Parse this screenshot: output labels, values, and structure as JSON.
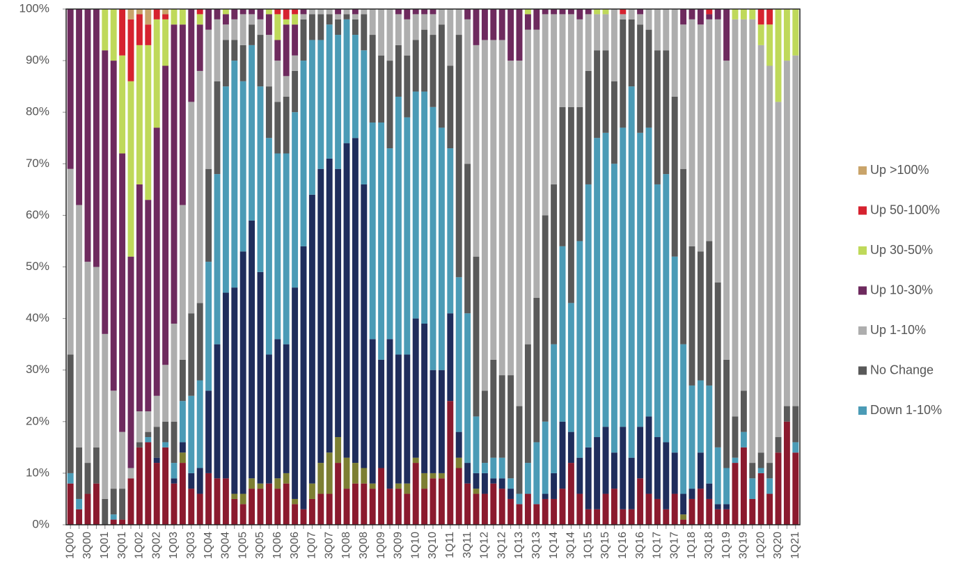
{
  "chart_data": {
    "type": "stacked_bar",
    "categories": [
      "1Q00",
      null,
      "3Q00",
      null,
      "1Q01",
      null,
      "3Q01",
      null,
      "1Q02",
      null,
      "3Q02",
      null,
      "1Q03",
      null,
      "3Q03",
      null,
      "1Q04",
      null,
      "3Q04",
      null,
      "1Q05",
      null,
      "3Q05",
      null,
      "1Q06",
      null,
      "3Q06",
      null,
      "1Q07",
      null,
      "3Q07",
      null,
      "1Q08",
      null,
      "3Q08",
      null,
      "1Q09",
      null,
      "3Q09",
      null,
      "1Q10",
      null,
      "3Q10",
      null,
      "1Q11",
      null,
      "3Q11",
      null,
      "1Q12",
      null,
      "3Q12",
      null,
      "1Q13",
      null,
      "3Q13",
      null,
      "1Q14",
      null,
      "3Q14",
      null,
      "1Q15",
      null,
      "3Q15",
      null,
      "1Q16",
      null,
      "3Q16",
      null,
      "1Q17",
      null,
      "3Q17",
      null,
      "1Q18",
      null,
      "3Q18",
      null,
      "1Q19",
      null,
      "3Q19",
      null,
      "1Q20",
      null,
      "3Q20",
      null,
      "1Q21"
    ],
    "series": [
      {
        "color": "#8b1a2e",
        "values": [
          8,
          3,
          6,
          8,
          0,
          1,
          1,
          9,
          15,
          16,
          12,
          15,
          8,
          12,
          7,
          6,
          10,
          9,
          9,
          5,
          4,
          7,
          7,
          8,
          7,
          8,
          4,
          3,
          5,
          6,
          6,
          12,
          7,
          8,
          8,
          7,
          11,
          7,
          7,
          6,
          12,
          7,
          9,
          9,
          24,
          11,
          8,
          6,
          6,
          8,
          7,
          5,
          4,
          6,
          4,
          5,
          5,
          7,
          12,
          6,
          3,
          3,
          6,
          7,
          3,
          3,
          9,
          6,
          5,
          3,
          6,
          1,
          5,
          7,
          5,
          3,
          3,
          12,
          15,
          5,
          10,
          6,
          14,
          20,
          14
        ]
      },
      {
        "color": "#7d7f33",
        "values": [
          0,
          0,
          0,
          0,
          0,
          0,
          0,
          0,
          0,
          0,
          0,
          0,
          0,
          2,
          0,
          0,
          0,
          0,
          0,
          1,
          2,
          2,
          1,
          0,
          2,
          2,
          1,
          0,
          3,
          6,
          8,
          5,
          6,
          4,
          3,
          1,
          0,
          0,
          1,
          2,
          1,
          3,
          1,
          1,
          0,
          2,
          0,
          1,
          0,
          0,
          0,
          0,
          0,
          0,
          0,
          0,
          0,
          0,
          0,
          0,
          0,
          0,
          0,
          0,
          0,
          0,
          0,
          0,
          0,
          0,
          0,
          1,
          0,
          0,
          0,
          0,
          0,
          0,
          0,
          0,
          0,
          0,
          0,
          0,
          0
        ]
      },
      {
        "color": "#1f2d5c",
        "values": [
          0,
          0,
          0,
          0,
          0,
          0,
          0,
          0,
          0,
          0,
          1,
          0,
          1,
          2,
          3,
          5,
          16,
          26,
          36,
          40,
          47,
          50,
          41,
          25,
          27,
          25,
          41,
          51,
          56,
          57,
          57,
          52,
          61,
          63,
          55,
          28,
          21,
          29,
          25,
          25,
          27,
          29,
          20,
          20,
          17,
          5,
          4,
          3,
          4,
          1,
          2,
          2,
          0,
          0,
          0,
          1,
          5,
          13,
          6,
          7,
          12,
          14,
          13,
          7,
          16,
          10,
          10,
          15,
          12,
          13,
          8,
          4,
          2,
          7,
          3,
          1,
          1,
          0,
          0,
          0,
          0,
          0,
          0,
          0,
          0
        ]
      },
      {
        "name": "Down 1-10%",
        "color": "#4b9bb6",
        "values": [
          2,
          2,
          0,
          0,
          0,
          1,
          0,
          0,
          0,
          1,
          0,
          1,
          3,
          8,
          15,
          17,
          25,
          33,
          40,
          44,
          33,
          34,
          36,
          42,
          36,
          37,
          34,
          36,
          30,
          25,
          26,
          26,
          24,
          20,
          26,
          42,
          46,
          37,
          50,
          46,
          44,
          45,
          51,
          47,
          32,
          30,
          29,
          11,
          2,
          4,
          4,
          2,
          2,
          6,
          12,
          14,
          25,
          34,
          25,
          42,
          51,
          58,
          57,
          56,
          58,
          72,
          57,
          56,
          49,
          52,
          38,
          29,
          20,
          14,
          19,
          11,
          7,
          1,
          3,
          4,
          1,
          3,
          0,
          0,
          2
        ]
      },
      {
        "name": "No Change",
        "color": "#595959",
        "values": [
          23,
          10,
          6,
          7,
          5,
          5,
          6,
          0,
          1,
          1,
          6,
          4,
          8,
          8,
          16,
          15,
          18,
          18,
          9,
          4,
          7,
          4,
          10,
          10,
          10,
          11,
          8,
          8,
          5,
          5,
          2,
          3,
          1,
          3,
          7,
          17,
          13,
          17,
          10,
          12,
          10,
          12,
          14,
          20,
          16,
          47,
          29,
          31,
          14,
          19,
          16,
          20,
          17,
          23,
          28,
          40,
          31,
          27,
          38,
          26,
          22,
          17,
          16,
          16,
          21,
          13,
          21,
          19,
          26,
          24,
          31,
          34,
          27,
          25,
          28,
          32,
          21,
          8,
          8,
          3,
          3,
          3,
          3,
          3,
          7
        ]
      },
      {
        "name": "Up 1-10%",
        "color": "#aeaeae",
        "values": [
          36,
          47,
          39,
          35,
          32,
          19,
          11,
          2,
          6,
          4,
          6,
          11,
          19,
          30,
          41,
          45,
          27,
          12,
          3,
          4,
          6,
          2,
          3,
          10,
          8,
          4,
          3,
          1,
          1,
          1,
          1,
          1,
          1,
          1,
          1,
          5,
          9,
          10,
          6,
          7,
          5,
          3,
          4,
          3,
          11,
          5,
          28,
          41,
          68,
          62,
          65,
          61,
          67,
          61,
          52,
          39,
          33,
          18,
          18,
          17,
          11,
          7,
          7,
          14,
          1,
          2,
          2,
          4,
          8,
          8,
          17,
          28,
          44,
          44,
          43,
          51,
          58,
          77,
          72,
          86,
          79,
          77,
          65,
          67,
          68
        ]
      },
      {
        "name": "Up 10-30%",
        "color": "#6e2a5e",
        "values": [
          31,
          38,
          49,
          50,
          55,
          64,
          54,
          41,
          44,
          41,
          52,
          58,
          58,
          35,
          18,
          9,
          4,
          2,
          2,
          2,
          1,
          1,
          2,
          4,
          4,
          10,
          6,
          1,
          0,
          0,
          0,
          1,
          0,
          1,
          0,
          0,
          0,
          0,
          1,
          2,
          1,
          1,
          1,
          0,
          0,
          0,
          2,
          7,
          6,
          6,
          6,
          10,
          10,
          3,
          4,
          1,
          1,
          1,
          1,
          2,
          1,
          0,
          0,
          0,
          0,
          0,
          1,
          0,
          0,
          0,
          0,
          3,
          2,
          3,
          1,
          2,
          10,
          0,
          0,
          0,
          0,
          0,
          0,
          0,
          0
        ]
      },
      {
        "name": "Up 30-50%",
        "color": "#bfd95a",
        "values": [
          0,
          0,
          0,
          0,
          8,
          10,
          19,
          34,
          27,
          30,
          21,
          9,
          3,
          3,
          0,
          2,
          0,
          0,
          1,
          0,
          0,
          0,
          0,
          1,
          5,
          1,
          2,
          0,
          0,
          0,
          0,
          0,
          0,
          0,
          0,
          0,
          0,
          0,
          0,
          0,
          0,
          0,
          0,
          0,
          0,
          0,
          0,
          0,
          0,
          0,
          0,
          0,
          0,
          1,
          0,
          0,
          0,
          0,
          0,
          0,
          0,
          1,
          1,
          0,
          0,
          0,
          0,
          0,
          0,
          0,
          0,
          0,
          0,
          0,
          0,
          0,
          0,
          2,
          2,
          2,
          4,
          8,
          18,
          10,
          9
        ]
      },
      {
        "name": "Up 50-100%",
        "color": "#d6222f",
        "values": [
          0,
          0,
          0,
          0,
          0,
          0,
          9,
          12,
          6,
          4,
          2,
          1,
          0,
          0,
          0,
          1,
          0,
          0,
          0,
          0,
          0,
          0,
          0,
          0,
          1,
          2,
          1,
          0,
          0,
          0,
          0,
          0,
          0,
          0,
          0,
          0,
          0,
          0,
          0,
          0,
          0,
          0,
          0,
          0,
          0,
          0,
          0,
          0,
          0,
          0,
          0,
          0,
          0,
          0,
          0,
          0,
          0,
          0,
          0,
          0,
          0,
          0,
          0,
          0,
          1,
          0,
          0,
          0,
          0,
          0,
          0,
          0,
          0,
          0,
          1,
          0,
          0,
          0,
          0,
          0,
          3,
          3,
          0,
          0,
          0
        ]
      },
      {
        "name": "Up >100%",
        "color": "#c9a46a",
        "values": [
          0,
          0,
          0,
          0,
          0,
          0,
          0,
          2,
          1,
          3,
          0,
          1,
          0,
          0,
          0,
          0,
          0,
          0,
          0,
          0,
          0,
          0,
          0,
          0,
          0,
          0,
          0,
          0,
          0,
          0,
          0,
          0,
          0,
          0,
          0,
          0,
          0,
          0,
          0,
          0,
          0,
          0,
          0,
          0,
          0,
          0,
          0,
          0,
          0,
          0,
          0,
          0,
          0,
          0,
          0,
          0,
          0,
          0,
          0,
          0,
          0,
          0,
          0,
          0,
          0,
          0,
          0,
          0,
          0,
          0,
          0,
          0,
          0,
          0,
          0,
          0,
          0,
          0,
          0,
          0,
          0,
          0,
          0,
          0,
          0
        ]
      }
    ],
    "ylim": [
      0,
      100
    ],
    "yticks": [
      {
        "value": 0,
        "label": "0%"
      },
      {
        "value": 10,
        "label": "10%"
      },
      {
        "value": 20,
        "label": "20%"
      },
      {
        "value": 30,
        "label": "30%"
      },
      {
        "value": 40,
        "label": "40%"
      },
      {
        "value": 50,
        "label": "50%"
      },
      {
        "value": 60,
        "label": "60%"
      },
      {
        "value": 70,
        "label": "70%"
      },
      {
        "value": 80,
        "label": "80%"
      },
      {
        "value": 90,
        "label": "90%"
      },
      {
        "value": 100,
        "label": "100%"
      }
    ],
    "legend": "right"
  }
}
